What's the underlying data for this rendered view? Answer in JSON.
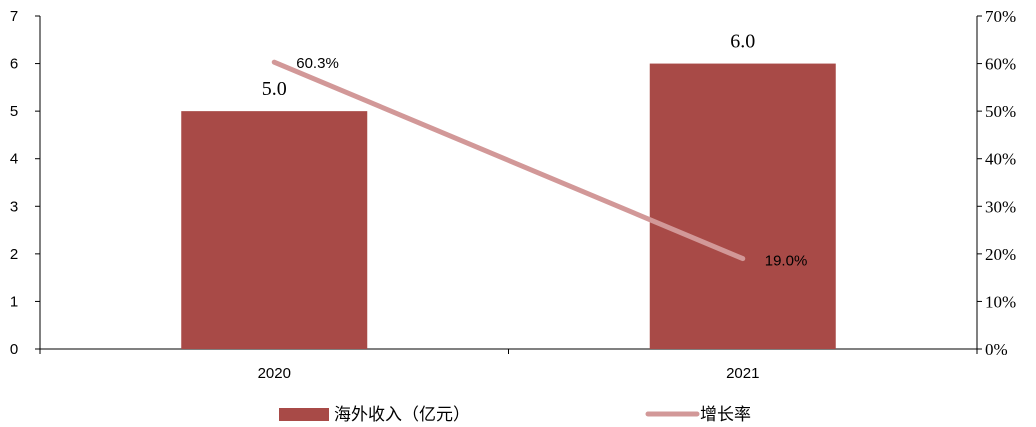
{
  "chart_data": {
    "type": "bar",
    "categories": [
      "2020",
      "2021"
    ],
    "series": [
      {
        "name": "海外收入（亿元）",
        "type": "bar",
        "axis": "left",
        "values": [
          5.0,
          6.0
        ],
        "labels": [
          "5.0",
          "6.0"
        ],
        "color": "#a84a47"
      },
      {
        "name": "增长率",
        "type": "line",
        "axis": "right",
        "values": [
          0.603,
          0.19
        ],
        "labels": [
          "60.3%",
          "19.0%"
        ],
        "color": "#d29898"
      }
    ],
    "y_left": {
      "ylim": [
        0,
        7
      ],
      "ticks": [
        "0",
        "1",
        "2",
        "3",
        "4",
        "5",
        "6",
        "7"
      ]
    },
    "y_right": {
      "ylim": [
        0,
        0.7
      ],
      "ticks": [
        "0%",
        "10%",
        "20%",
        "30%",
        "40%",
        "50%",
        "60%",
        "70%"
      ]
    },
    "legend_position": "bottom",
    "grid": false
  }
}
